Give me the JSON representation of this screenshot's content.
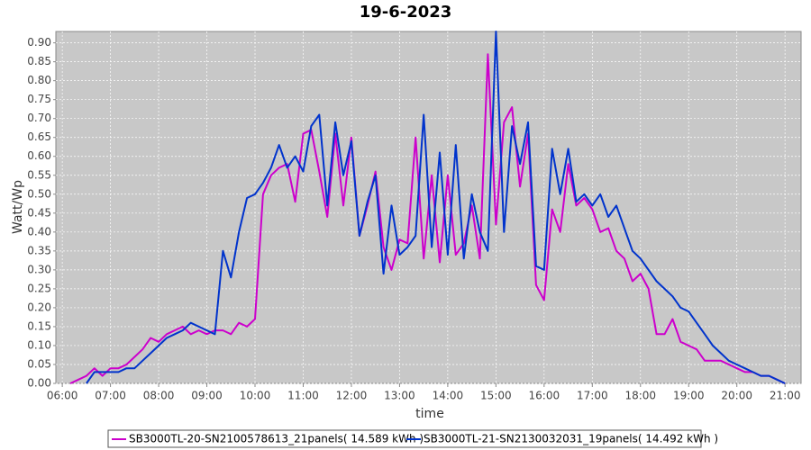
{
  "chart_data": {
    "type": "line",
    "title": "19-6-2023",
    "x_label": "time",
    "y_label": "Watt/Wp",
    "x": [
      "06:10",
      "06:20",
      "06:30",
      "06:40",
      "06:50",
      "07:00",
      "07:10",
      "07:20",
      "07:30",
      "07:40",
      "07:50",
      "08:00",
      "08:10",
      "08:20",
      "08:30",
      "08:40",
      "08:50",
      "09:00",
      "09:10",
      "09:20",
      "09:30",
      "09:40",
      "09:50",
      "10:00",
      "10:10",
      "10:20",
      "10:30",
      "10:40",
      "10:50",
      "11:00",
      "11:10",
      "11:20",
      "11:30",
      "11:40",
      "11:50",
      "12:00",
      "12:10",
      "12:20",
      "12:30",
      "12:40",
      "12:50",
      "13:00",
      "13:10",
      "13:20",
      "13:30",
      "13:40",
      "13:50",
      "14:00",
      "14:10",
      "14:20",
      "14:30",
      "14:40",
      "14:50",
      "15:00",
      "15:10",
      "15:20",
      "15:30",
      "15:40",
      "15:50",
      "16:00",
      "16:10",
      "16:20",
      "16:30",
      "16:40",
      "16:50",
      "17:00",
      "17:10",
      "17:20",
      "17:30",
      "17:40",
      "17:50",
      "18:00",
      "18:10",
      "18:20",
      "18:30",
      "18:40",
      "18:50",
      "19:00",
      "19:10",
      "19:20",
      "19:30",
      "19:40",
      "19:50",
      "20:00",
      "20:10",
      "20:20",
      "20:30",
      "20:40",
      "20:50",
      "21:00"
    ],
    "series": [
      {
        "name": "SB3000TL-20-SN2100578613_21panels( 14.589 kWh )",
        "color": "#cc00cc",
        "values": [
          0.0,
          0.01,
          0.02,
          0.04,
          0.02,
          0.04,
          0.04,
          0.05,
          0.07,
          0.09,
          0.12,
          0.11,
          0.13,
          0.14,
          0.15,
          0.13,
          0.14,
          0.13,
          0.14,
          0.14,
          0.13,
          0.16,
          0.15,
          0.17,
          0.5,
          0.55,
          0.57,
          0.58,
          0.48,
          0.66,
          0.67,
          0.56,
          0.44,
          0.66,
          0.47,
          0.65,
          0.39,
          0.47,
          0.56,
          0.36,
          0.3,
          0.38,
          0.37,
          0.65,
          0.33,
          0.55,
          0.32,
          0.55,
          0.34,
          0.37,
          0.47,
          0.33,
          0.87,
          0.42,
          0.69,
          0.73,
          0.52,
          0.66,
          0.26,
          0.22,
          0.46,
          0.4,
          0.58,
          0.47,
          0.49,
          0.46,
          0.4,
          0.41,
          0.35,
          0.33,
          0.27,
          0.29,
          0.25,
          0.13,
          0.13,
          0.17,
          0.11,
          0.1,
          0.09,
          0.06,
          0.06,
          0.06,
          0.05,
          0.04,
          0.03,
          0.03,
          0.02,
          0.02,
          0.01,
          0.0
        ]
      },
      {
        "name": "SB3000TL-21-SN2130032031_19panels( 14.492 kWh )",
        "color": "#0033cc",
        "values": [
          null,
          null,
          0.0,
          0.03,
          0.03,
          0.03,
          0.03,
          0.04,
          0.04,
          0.06,
          0.08,
          0.1,
          0.12,
          0.13,
          0.14,
          0.16,
          0.15,
          0.14,
          0.13,
          0.35,
          0.28,
          0.4,
          0.49,
          0.5,
          0.53,
          0.57,
          0.63,
          0.57,
          0.6,
          0.56,
          0.68,
          0.71,
          0.47,
          0.69,
          0.55,
          0.64,
          0.39,
          0.48,
          0.55,
          0.29,
          0.47,
          0.34,
          0.36,
          0.39,
          0.71,
          0.36,
          0.61,
          0.34,
          0.63,
          0.33,
          0.5,
          0.4,
          0.35,
          0.93,
          0.4,
          0.68,
          0.58,
          0.69,
          0.31,
          0.3,
          0.62,
          0.5,
          0.62,
          0.48,
          0.5,
          0.47,
          0.5,
          0.44,
          0.47,
          0.41,
          0.35,
          0.33,
          0.3,
          0.27,
          0.25,
          0.23,
          0.2,
          0.19,
          0.16,
          0.13,
          0.1,
          0.08,
          0.06,
          0.05,
          0.04,
          0.03,
          0.02,
          0.02,
          0.01,
          0.0
        ]
      }
    ],
    "xlim": [
      "05:52",
      "21:20"
    ],
    "xticks": [
      "06:00",
      "07:00",
      "08:00",
      "09:00",
      "10:00",
      "11:00",
      "12:00",
      "13:00",
      "14:00",
      "15:00",
      "16:00",
      "17:00",
      "18:00",
      "19:00",
      "20:00",
      "21:00"
    ],
    "ylim": [
      0,
      0.93
    ],
    "yticks": [
      {
        "value": 0,
        "label": "0.00"
      },
      {
        "value": 0.05,
        "label": "0.05"
      },
      {
        "value": 0.1,
        "label": "0.10"
      },
      {
        "value": 0.15,
        "label": "0.15"
      },
      {
        "value": 0.2,
        "label": "0.20"
      },
      {
        "value": 0.25,
        "label": "0.25"
      },
      {
        "value": 0.3,
        "label": "0.30"
      },
      {
        "value": 0.35,
        "label": "0.35"
      },
      {
        "value": 0.4,
        "label": "0.40"
      },
      {
        "value": 0.45,
        "label": "0.45"
      },
      {
        "value": 0.5,
        "label": "0.50"
      },
      {
        "value": 0.55,
        "label": "0.55"
      },
      {
        "value": 0.6,
        "label": "0.60"
      },
      {
        "value": 0.65,
        "label": "0.65"
      },
      {
        "value": 0.7,
        "label": "0.70"
      },
      {
        "value": 0.75,
        "label": "0.75"
      },
      {
        "value": 0.8,
        "label": "0.80"
      },
      {
        "value": 0.85,
        "label": "0.85"
      },
      {
        "value": 0.9,
        "label": "0.90"
      }
    ],
    "grid": true
  }
}
